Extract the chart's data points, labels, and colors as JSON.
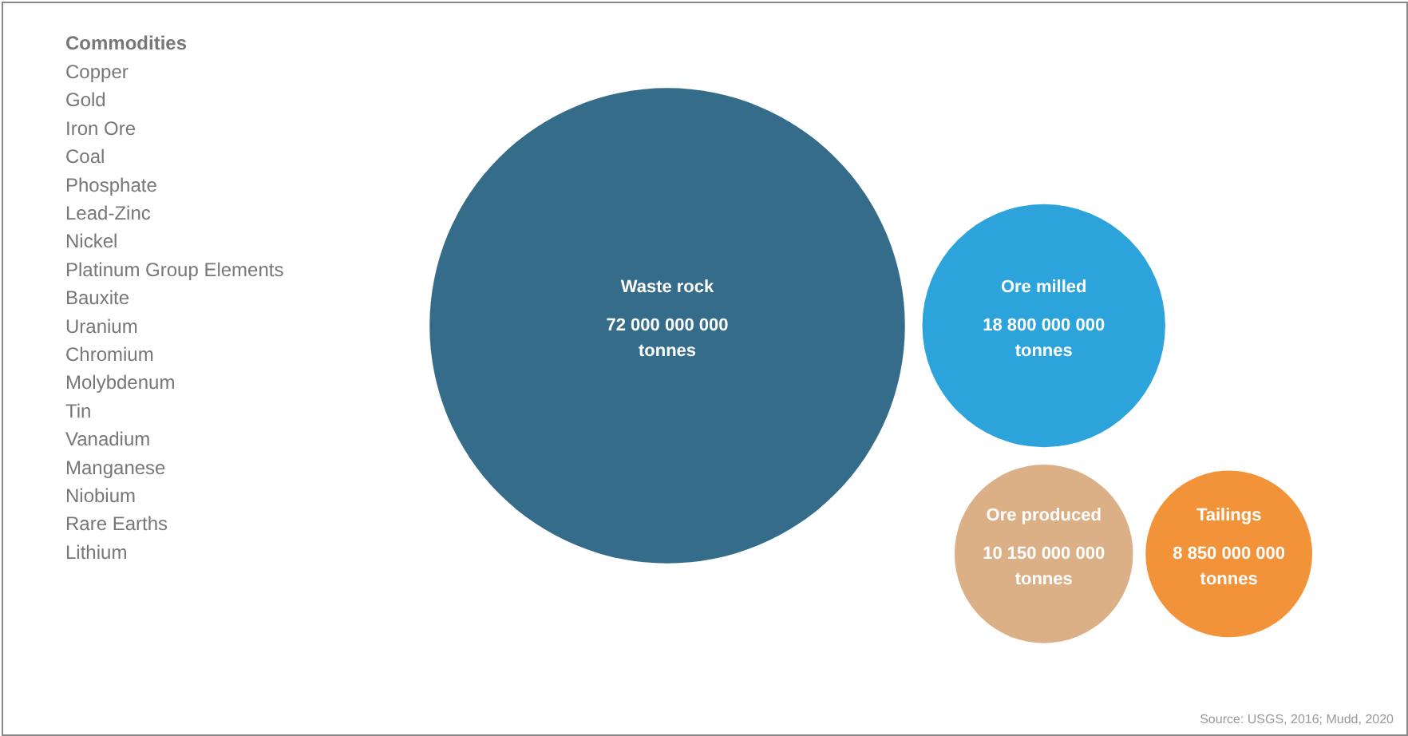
{
  "chart_data": {
    "type": "other",
    "legend_title": "Commodities",
    "categories": [
      "Waste rock",
      "Ore milled",
      "Ore produced",
      "Tailings"
    ],
    "values": [
      72000000000,
      18800000000,
      10150000000,
      8850000000
    ],
    "value_labels": [
      "72 000 000 000\ntonnes",
      "18 800 000 000\ntonnes",
      "10 150 000 000\ntonnes",
      "8 850 000 000\ntonnes"
    ],
    "colors": [
      "#24607f",
      "#1a9bd7",
      "#d9a97c",
      "#f28a28"
    ],
    "annotations": [
      "Copper",
      "Gold",
      "Iron Ore",
      "Coal",
      "Phosphate",
      "Lead-Zinc",
      "Nickel",
      "Platinum Group Elements",
      "Bauxite",
      "Uranium",
      "Chromium",
      "Molybdenum",
      "Tin",
      "Vanadium",
      "Manganese",
      "Niobium",
      "Rare Earths",
      "Lithium",
      "Source: USGS, 2016; Mudd, 2020"
    ]
  }
}
